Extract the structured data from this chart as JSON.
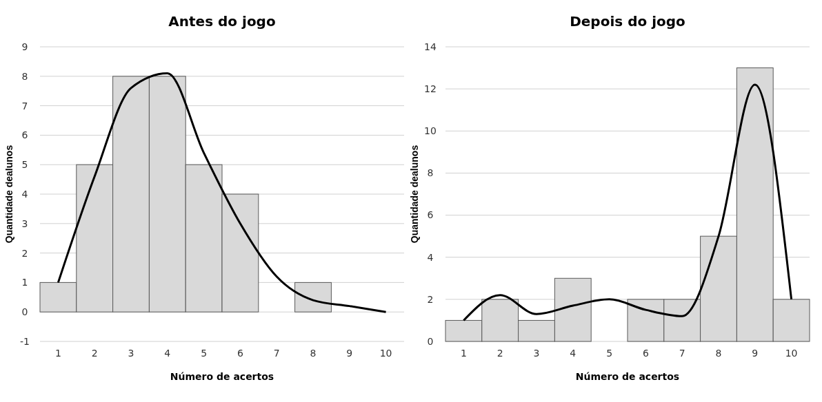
{
  "chart_data": [
    {
      "type": "bar",
      "title": "Antes do jogo",
      "xlabel": "Número de acertos",
      "ylabel": "Quantidade dealunos",
      "categories": [
        "1",
        "2",
        "3",
        "4",
        "5",
        "6",
        "7",
        "8",
        "9",
        "10"
      ],
      "ylim": [
        -1,
        9
      ],
      "yticks": [
        -1,
        0,
        1,
        2,
        3,
        4,
        5,
        6,
        7,
        8,
        9
      ],
      "grid": "y",
      "series": [
        {
          "color": "#d9d9d9",
          "values": [
            1,
            5,
            8,
            8,
            5,
            4,
            null,
            1,
            null,
            null
          ]
        },
        {
          "type": "line",
          "color": "#000000",
          "values": [
            1,
            4.6,
            7.6,
            8.1,
            5.4,
            3,
            1.2,
            0.4,
            0.2,
            0
          ]
        }
      ]
    },
    {
      "type": "bar",
      "title": "Depois do jogo",
      "xlabel": "Número de acertos",
      "ylabel": "Quantidade dealunos",
      "categories": [
        "1",
        "2",
        "3",
        "4",
        "5",
        "6",
        "7",
        "8",
        "9",
        "10"
      ],
      "ylim": [
        0,
        14
      ],
      "yticks": [
        0,
        2,
        4,
        6,
        8,
        10,
        12,
        14
      ],
      "grid": "y",
      "series": [
        {
          "color": "#d9d9d9",
          "values": [
            1,
            2,
            1,
            3,
            null,
            2,
            2,
            5,
            13,
            2
          ]
        },
        {
          "type": "line",
          "color": "#000000",
          "values": [
            1,
            2.2,
            1.3,
            1.7,
            2,
            1.5,
            1.2,
            5,
            12.2,
            2
          ]
        }
      ]
    }
  ]
}
